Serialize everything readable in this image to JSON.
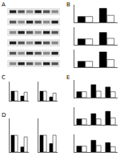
{
  "panels": [
    "A",
    "B",
    "C",
    "D",
    "E"
  ],
  "chart_data": [
    {
      "type": "bar",
      "categories": [
        null,
        null
      ],
      "tick_labels": false,
      "ylim": [
        0,
        3
      ],
      "series": [
        {
          "color": "#000000",
          "values": [
            1.0,
            2.4
          ]
        },
        {
          "color": "#ffffff",
          "values": [
            1.0,
            1.2
          ]
        }
      ]
    },
    {
      "type": "bar",
      "categories": [
        null,
        null
      ],
      "tick_labels": false,
      "ylim": [
        0,
        3
      ],
      "series": [
        {
          "color": "#000000",
          "values": [
            1.0,
            2.1
          ]
        },
        {
          "color": "#ffffff",
          "values": [
            1.0,
            1.1
          ]
        }
      ]
    },
    {
      "type": "bar",
      "categories": [
        null,
        null
      ],
      "tick_labels": false,
      "ylim": [
        0,
        3
      ],
      "series": [
        {
          "color": "#000000",
          "values": [
            1.0,
            2.6
          ]
        },
        {
          "color": "#ffffff",
          "values": [
            1.0,
            1.3
          ]
        }
      ]
    },
    {
      "type": "bar",
      "categories": [
        null,
        null
      ],
      "tick_labels": false,
      "ylim": [
        0,
        2
      ],
      "series": [
        {
          "color": "#000000",
          "values": [
            1.0,
            0.5
          ]
        },
        {
          "color": "#ffffff",
          "values": [
            1.0,
            0.9
          ]
        }
      ]
    },
    {
      "type": "bar",
      "categories": [
        null,
        null
      ],
      "tick_labels": false,
      "ylim": [
        0,
        2
      ],
      "series": [
        {
          "color": "#000000",
          "values": [
            1.0,
            0.4
          ]
        },
        {
          "color": "#ffffff",
          "values": [
            1.0,
            0.8
          ]
        }
      ]
    },
    {
      "type": "bar",
      "categories": [
        null,
        null,
        null
      ],
      "tick_labels": false,
      "ylim": [
        0,
        3
      ],
      "series": [
        {
          "color": "#000000",
          "values": [
            1.0,
            2.2,
            1.8
          ]
        },
        {
          "color": "#ffffff",
          "values": [
            1.0,
            1.1,
            1.0
          ]
        }
      ]
    },
    {
      "type": "bar",
      "categories": [
        null,
        null
      ],
      "tick_labels": false,
      "ylim": [
        0,
        2
      ],
      "series": [
        {
          "color": "#000000",
          "values": [
            1.0,
            0.3
          ]
        },
        {
          "color": "#ffffff",
          "values": [
            1.0,
            0.9
          ]
        }
      ]
    },
    {
      "type": "bar",
      "categories": [
        null,
        null
      ],
      "tick_labels": false,
      "ylim": [
        0,
        2
      ],
      "series": [
        {
          "color": "#000000",
          "values": [
            1.0,
            0.5
          ]
        },
        {
          "color": "#ffffff",
          "values": [
            1.0,
            1.0
          ]
        }
      ]
    },
    {
      "type": "bar",
      "categories": [
        null,
        null,
        null
      ],
      "tick_labels": false,
      "ylim": [
        0,
        3
      ],
      "series": [
        {
          "color": "#000000",
          "values": [
            1.0,
            1.9,
            2.3
          ]
        },
        {
          "color": "#ffffff",
          "values": [
            1.0,
            1.0,
            1.2
          ]
        }
      ]
    },
    {
      "type": "bar",
      "categories": [
        null,
        null,
        null
      ],
      "tick_labels": false,
      "ylim": [
        0,
        3
      ],
      "series": [
        {
          "color": "#000000",
          "values": [
            1.0,
            2.0,
            1.6
          ]
        },
        {
          "color": "#ffffff",
          "values": [
            1.0,
            1.1,
            0.9
          ]
        }
      ]
    }
  ]
}
